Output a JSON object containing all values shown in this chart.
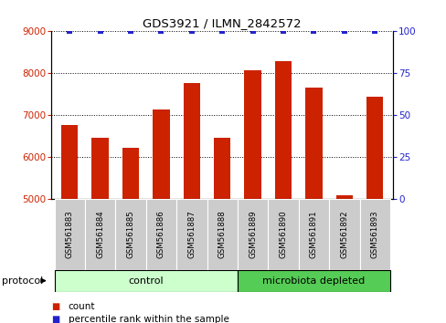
{
  "title": "GDS3921 / ILMN_2842572",
  "samples": [
    "GSM561883",
    "GSM561884",
    "GSM561885",
    "GSM561886",
    "GSM561887",
    "GSM561888",
    "GSM561889",
    "GSM561890",
    "GSM561891",
    "GSM561892",
    "GSM561893"
  ],
  "counts": [
    6750,
    6460,
    6200,
    7120,
    7760,
    6460,
    8050,
    8280,
    7650,
    5080,
    7420
  ],
  "percentile_ranks": [
    100,
    100,
    100,
    100,
    100,
    100,
    100,
    100,
    100,
    100,
    100
  ],
  "bar_color": "#cc2200",
  "dot_color": "#2222cc",
  "ylim_left": [
    5000,
    9000
  ],
  "ylim_right": [
    0,
    100
  ],
  "yticks_left": [
    5000,
    6000,
    7000,
    8000,
    9000
  ],
  "yticks_right": [
    0,
    25,
    50,
    75,
    100
  ],
  "grid_color": "#000000",
  "n_control": 6,
  "n_micro": 5,
  "control_color": "#ccffcc",
  "microbiota_color": "#55cc55",
  "label_bg_color": "#cccccc",
  "protocol_label": "protocol",
  "control_label": "control",
  "microbiota_label": "microbiota depleted",
  "legend_count_label": "count",
  "legend_pct_label": "percentile rank within the sample",
  "background_color": "#ffffff",
  "bar_width": 0.55
}
